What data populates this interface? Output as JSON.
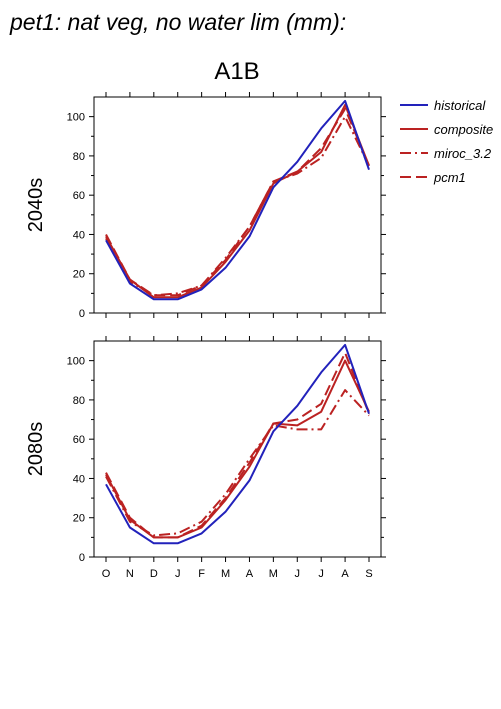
{
  "figure": {
    "title": "pet1: nat veg, no water lim (mm):",
    "subtitle": "A1B"
  },
  "legend": {
    "placement": "right",
    "items": [
      {
        "name": "historical",
        "color": "#2222bb",
        "dash": "solid"
      },
      {
        "name": "composite",
        "color": "#bb2222",
        "dash": "solid"
      },
      {
        "name": "miroc_3.2",
        "color": "#bb2222",
        "dash": "dashdot"
      },
      {
        "name": "pcm1",
        "color": "#bb2222",
        "dash": "dashed"
      }
    ]
  },
  "chart_data": [
    {
      "type": "line",
      "panel_label": "2040s",
      "categories": [
        "O",
        "N",
        "D",
        "J",
        "F",
        "M",
        "A",
        "M",
        "J",
        "J",
        "A",
        "S"
      ],
      "ylim": [
        0,
        110
      ],
      "yticks": [
        0,
        20,
        40,
        60,
        80,
        100
      ],
      "show_xtick_labels": false,
      "series": [
        {
          "name": "historical",
          "values": [
            37,
            15,
            7,
            7,
            12,
            23,
            39,
            64,
            77,
            94,
            108,
            73
          ]
        },
        {
          "name": "composite",
          "values": [
            39,
            17,
            8,
            8,
            13,
            26,
            42,
            66,
            72,
            82,
            106,
            75
          ]
        },
        {
          "name": "miroc_3.2",
          "values": [
            38,
            16,
            9,
            10,
            14,
            28,
            44,
            67,
            71,
            79,
            100,
            75
          ]
        },
        {
          "name": "pcm1",
          "values": [
            40,
            17,
            9,
            9,
            14,
            27,
            44,
            67,
            72,
            84,
            104,
            75
          ]
        }
      ]
    },
    {
      "type": "line",
      "panel_label": "2080s",
      "categories": [
        "O",
        "N",
        "D",
        "J",
        "F",
        "M",
        "A",
        "M",
        "J",
        "J",
        "A",
        "S"
      ],
      "ylim": [
        0,
        110
      ],
      "yticks": [
        0,
        20,
        40,
        60,
        80,
        100
      ],
      "show_xtick_labels": true,
      "series": [
        {
          "name": "historical",
          "values": [
            37,
            15,
            7,
            7,
            12,
            23,
            39,
            64,
            77,
            94,
            108,
            73
          ]
        },
        {
          "name": "composite",
          "values": [
            42,
            19,
            10,
            10,
            15,
            29,
            46,
            68,
            67,
            74,
            100,
            74
          ]
        },
        {
          "name": "miroc_3.2",
          "values": [
            41,
            18,
            11,
            12,
            18,
            32,
            50,
            67,
            65,
            65,
            85,
            72
          ]
        },
        {
          "name": "pcm1",
          "values": [
            43,
            20,
            10,
            10,
            16,
            30,
            48,
            68,
            70,
            78,
            104,
            73
          ]
        }
      ]
    }
  ]
}
